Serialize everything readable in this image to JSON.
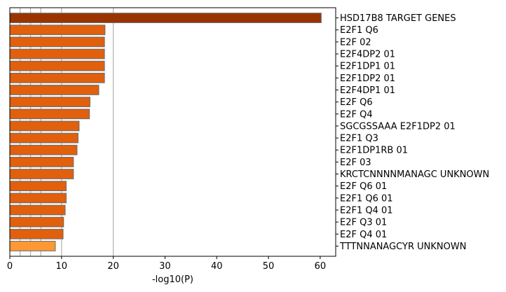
{
  "chart_data": {
    "type": "bar",
    "orientation": "horizontal",
    "title": "",
    "xlabel": "-log10(P)",
    "ylabel": "",
    "xlim": [
      0,
      63
    ],
    "xticks": [
      0,
      10,
      20,
      30,
      40,
      50,
      60
    ],
    "reference_lines": [
      2,
      4,
      6,
      10,
      20
    ],
    "categories": [
      "HSD17B8 TARGET GENES",
      "E2F1 Q6",
      "E2F 02",
      "E2F4DP2 01",
      "E2F1DP1 01",
      "E2F1DP2 01",
      "E2F4DP1 01",
      "E2F Q6",
      "E2F Q4",
      "SGCGSSAAA E2F1DP2 01",
      "E2F1 Q3",
      "E2F1DP1RB 01",
      "E2F 03",
      "KRCTCNNNNMANAGC UNKNOWN",
      "E2F Q6 01",
      "E2F1 Q6 01",
      "E2F1 Q4 01",
      "E2F Q3 01",
      "E2F Q4 01",
      "TTTNNANAGCYR UNKNOWN"
    ],
    "values": [
      60.2,
      18.4,
      18.3,
      18.3,
      18.3,
      18.3,
      17.2,
      15.5,
      15.4,
      13.4,
      13.2,
      13.0,
      12.3,
      12.3,
      10.9,
      10.9,
      10.7,
      10.4,
      10.3,
      8.8
    ],
    "colors": {
      "top": "#993300",
      "mid": "#e0600d",
      "low": "#fd9835",
      "edge": "#6b6b6b",
      "gridline": "#b0b0b0"
    }
  }
}
